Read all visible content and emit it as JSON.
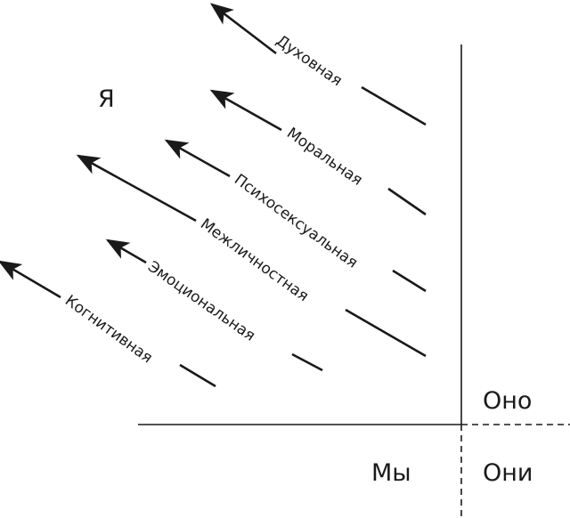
{
  "quadrants": {
    "ya": "Я",
    "ono": "Оно",
    "my": "Мы",
    "oni": "Они"
  },
  "arrows": [
    {
      "label": "Духовная"
    },
    {
      "label": "Моральная"
    },
    {
      "label": "Психосексуальная"
    },
    {
      "label": "Межличностная"
    },
    {
      "label": "Эмоциональная"
    },
    {
      "label": "Когнитивная"
    }
  ]
}
